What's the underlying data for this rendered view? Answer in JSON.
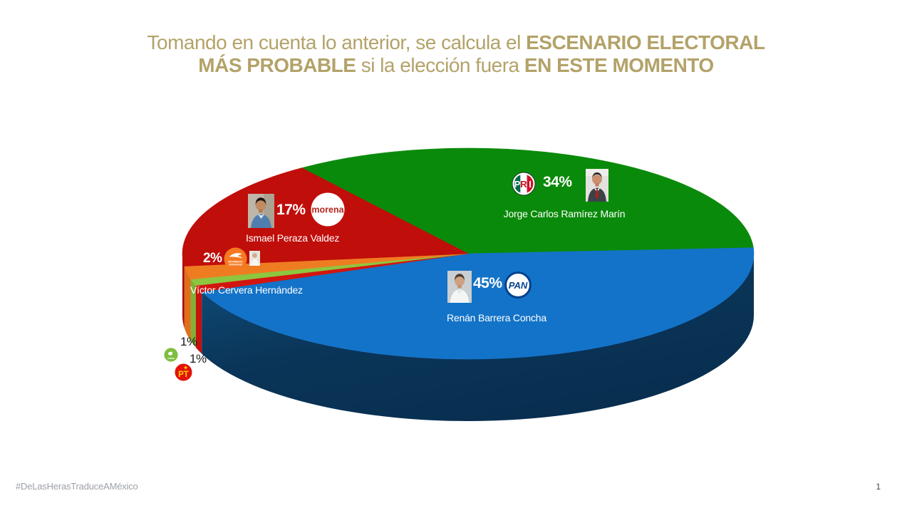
{
  "title": {
    "l1a": "Tomando en cuenta lo anterior, se calcula el ",
    "l1b": "ESCENARIO ELECTORAL",
    "l2a": "MÁS PROBABLE",
    "l2b": " si la elección fuera ",
    "l2c": "EN ESTE MOMENTO",
    "color": "#B3A269"
  },
  "footer": {
    "hashtag": "#DeLasHerasTraduceAMéxico",
    "page": "1"
  },
  "logos": {
    "pri_p": "P",
    "pri_r": "R",
    "pri_i": "I",
    "pan": "PAN",
    "morena": "morena",
    "mc_line1": "MOVIMIENTO",
    "mc_line2": "CIUDADANO",
    "pvem": "VERDE",
    "pt": "PT"
  },
  "chart_data": {
    "type": "pie",
    "style": "3d",
    "unit": "%",
    "start_angle_deg": 125.6,
    "direction": "clockwise",
    "legend": false,
    "slices": [
      {
        "party": "PRI",
        "candidate": "Jorge Carlos Ramírez Marín",
        "value": 34,
        "label": "34%",
        "color_top": "#0A8A0A",
        "color_side": "#077207"
      },
      {
        "party": "PAN",
        "candidate": "Renán Barrera Concha",
        "value": 45,
        "label": "45%",
        "color_top": "#1373C8",
        "color_side": [
          "#11507F",
          "#0A3558",
          "#082E4F"
        ]
      },
      {
        "party": "PT",
        "candidate": "",
        "value": 1,
        "label": "1%",
        "color_top": "#D31510",
        "color_side": "#C8100C"
      },
      {
        "party": "PVEM",
        "candidate": "",
        "value": 1,
        "label": "1%",
        "color_top": "#8DC63F",
        "color_side": "#7DB335"
      },
      {
        "party": "MC",
        "candidate": "Víctor Cervera Hernández",
        "value": 2,
        "label": "2%",
        "color_top": "#EE7D22",
        "color_side": "#DF6F1C"
      },
      {
        "party": "MORENA",
        "candidate": "Ismael Peraza Valdez",
        "value": 17,
        "label": "17%",
        "color_top": "#C00E0B",
        "color_side": "#A80C09"
      }
    ]
  }
}
